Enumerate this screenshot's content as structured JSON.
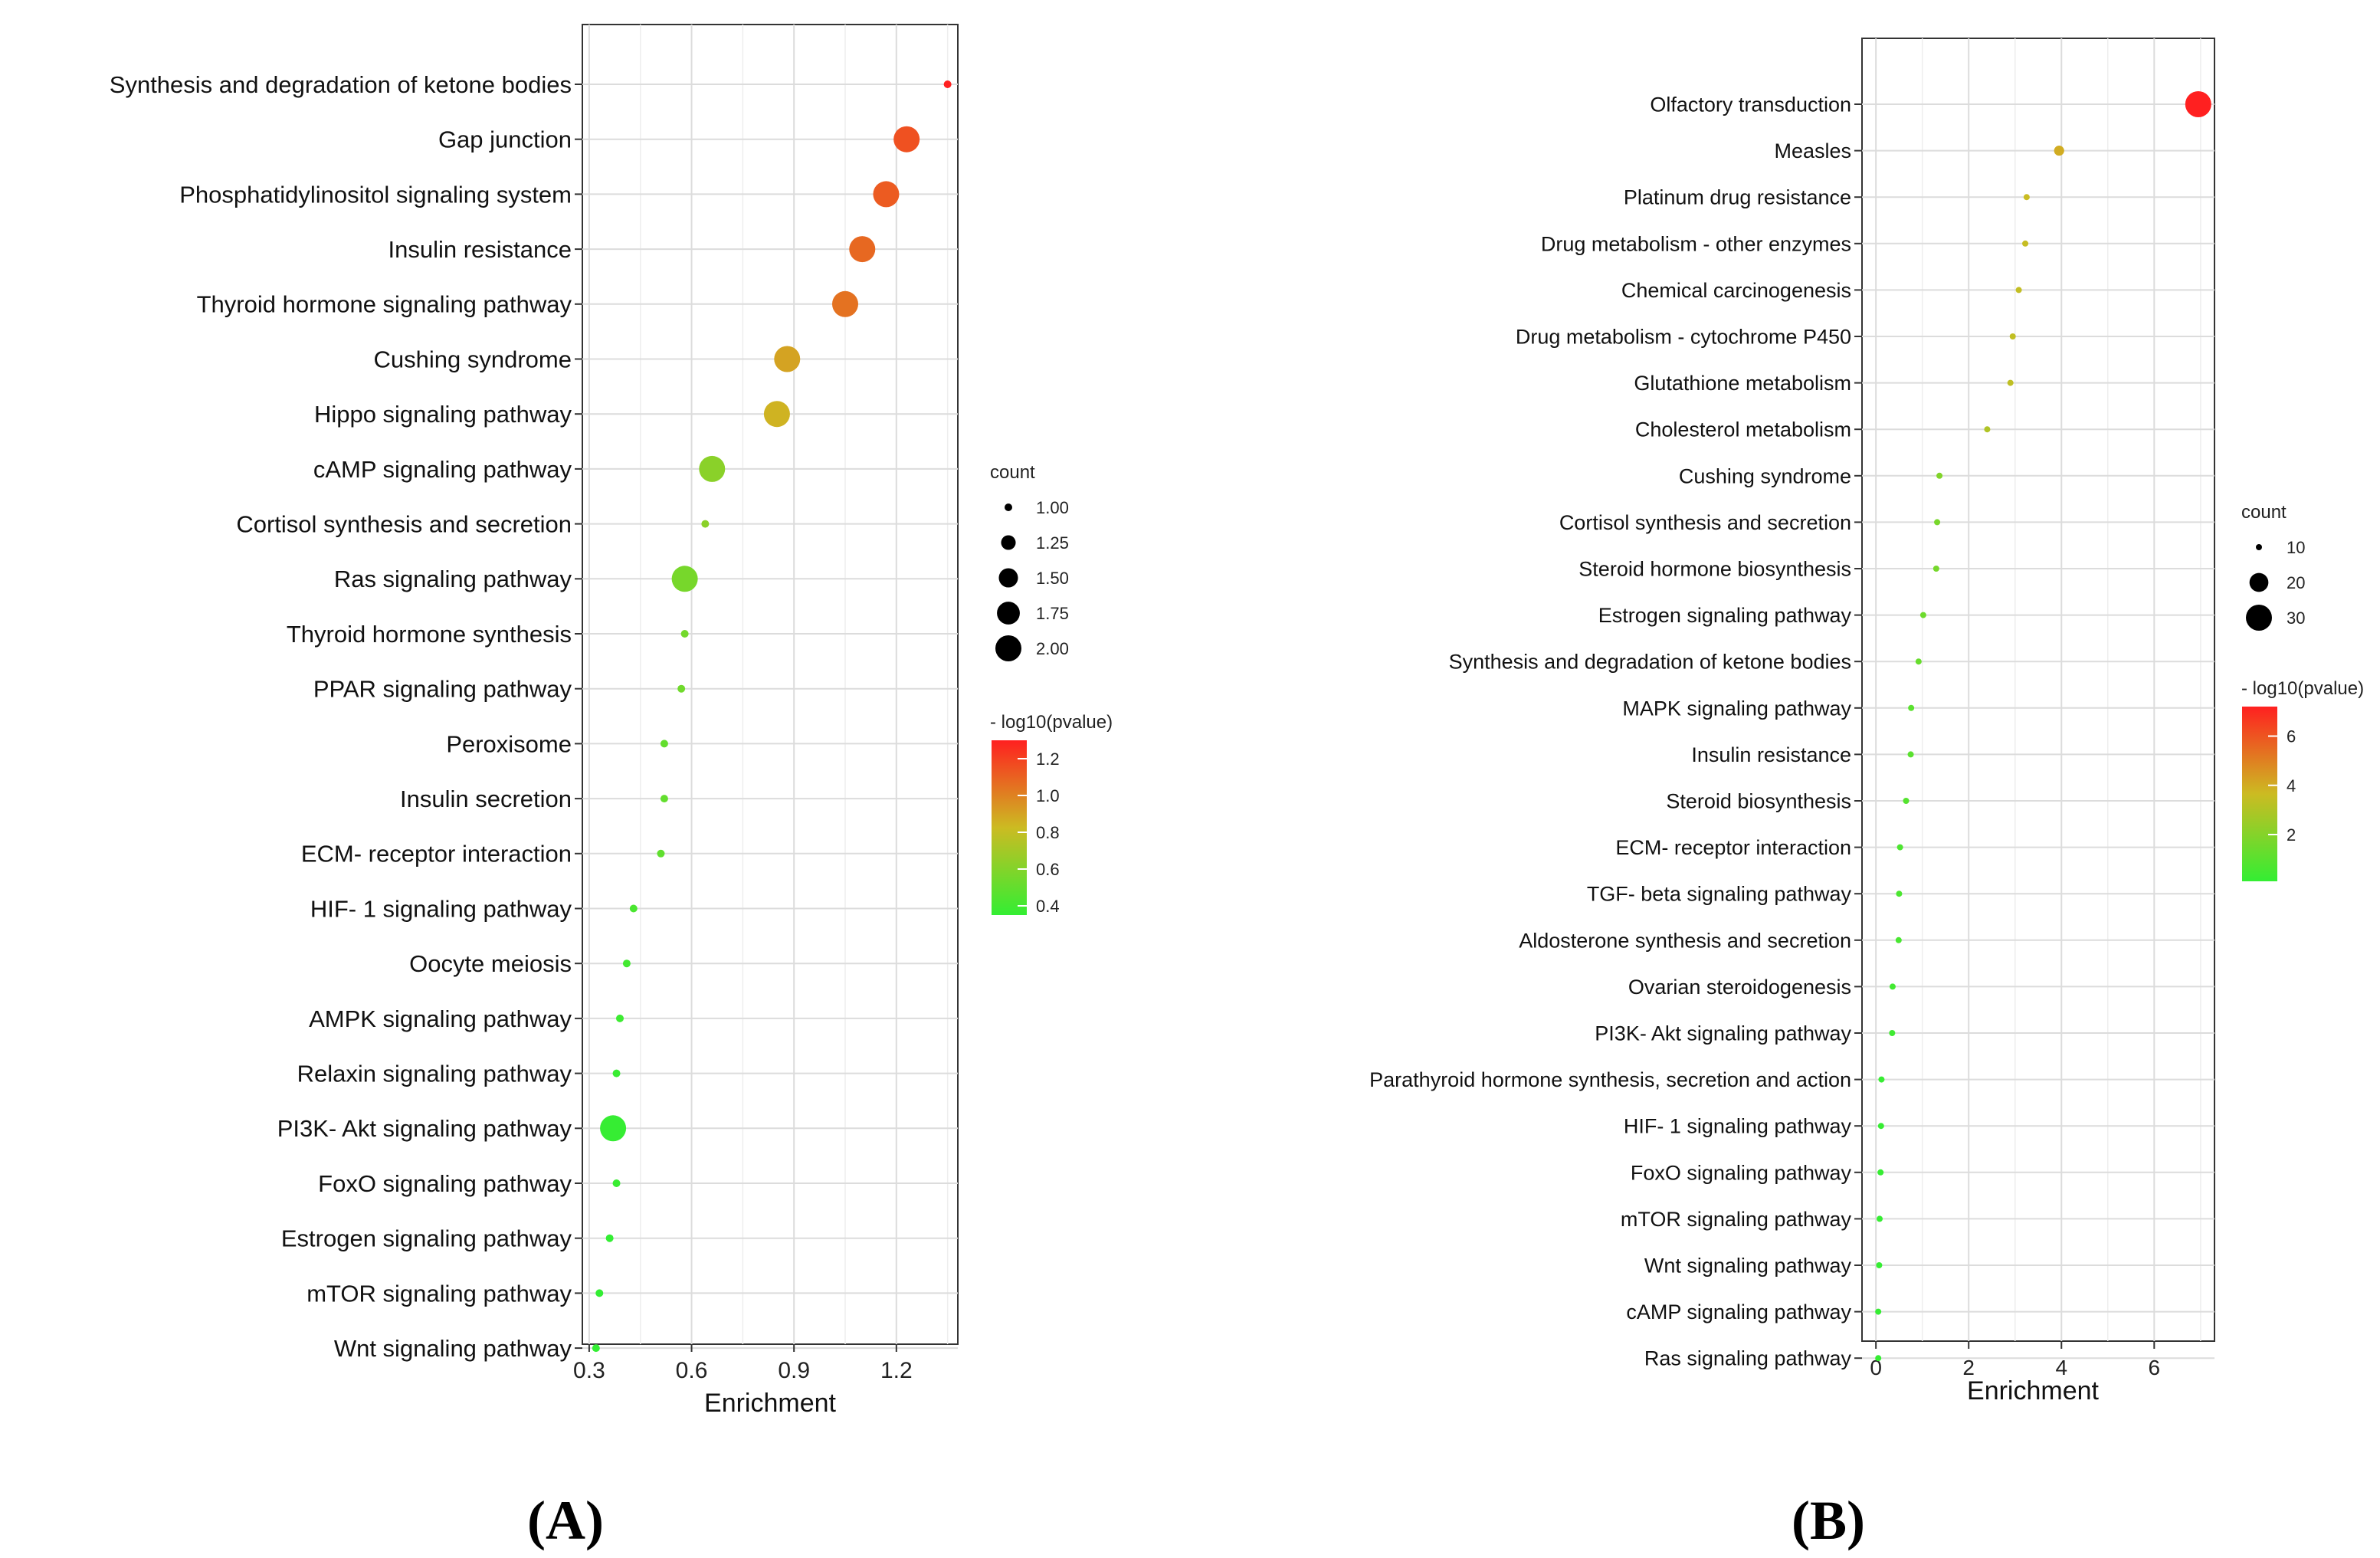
{
  "panels": [
    "(A)",
    "(B)"
  ],
  "chart_data": [
    {
      "type": "scatter",
      "title": "",
      "xlabel": "Enrichment",
      "ylabel": "",
      "xlim": [
        0.28,
        1.38
      ],
      "xticks": [
        0.3,
        0.6,
        0.9,
        1.2
      ],
      "xtick_labels": [
        "0.3",
        "0.6",
        "0.9",
        "1.2"
      ],
      "grid": true,
      "size_legend": {
        "title": "count",
        "values": [
          1.0,
          1.25,
          1.5,
          1.75,
          2.0
        ],
        "labels": [
          "1.00",
          "1.25",
          "1.50",
          "1.75",
          "2.00"
        ]
      },
      "color_legend": {
        "title": "- log10(pvalue)",
        "range": [
          0.35,
          1.3
        ],
        "ticks": [
          1.2,
          1.0,
          0.8,
          0.6,
          0.4
        ],
        "labels": [
          "1.2",
          "1.0",
          "0.8",
          "0.6",
          "0.4"
        ],
        "low_color": "#33ee33",
        "mid_color": "#ccbb22",
        "high_color": "#ff2020"
      },
      "categories": [
        "Synthesis and degradation of ketone bodies",
        "Gap junction",
        "Phosphatidylinositol signaling system",
        "Insulin resistance",
        "Thyroid hormone signaling pathway",
        "Cushing syndrome",
        "Hippo signaling pathway",
        "cAMP signaling pathway",
        "Cortisol synthesis and secretion",
        "Ras signaling pathway",
        "Thyroid hormone synthesis",
        "PPAR signaling pathway",
        "Peroxisome",
        "Insulin secretion",
        "ECM- receptor interaction",
        "HIF- 1 signaling pathway",
        "Oocyte meiosis",
        "AMPK signaling pathway",
        "Relaxin signaling pathway",
        "PI3K- Akt signaling pathway",
        "FoxO signaling pathway",
        "Estrogen signaling pathway",
        "mTOR signaling pathway",
        "Wnt signaling pathway"
      ],
      "enrichment": [
        1.35,
        1.23,
        1.17,
        1.1,
        1.05,
        0.88,
        0.85,
        0.66,
        0.64,
        0.58,
        0.58,
        0.57,
        0.52,
        0.52,
        0.51,
        0.43,
        0.41,
        0.39,
        0.38,
        0.37,
        0.38,
        0.36,
        0.33,
        0.32
      ],
      "count": [
        1,
        2,
        2,
        2,
        2,
        2,
        2,
        2,
        1,
        2,
        1,
        1,
        1,
        1,
        1,
        1,
        1,
        1,
        1,
        2,
        1,
        1,
        1,
        1
      ],
      "neg_log10_pvalue": [
        1.3,
        1.15,
        1.12,
        1.08,
        1.05,
        0.9,
        0.85,
        0.62,
        0.62,
        0.56,
        0.55,
        0.54,
        0.5,
        0.5,
        0.49,
        0.42,
        0.4,
        0.38,
        0.37,
        0.36,
        0.37,
        0.35,
        0.34,
        0.33
      ]
    },
    {
      "type": "scatter",
      "title": "",
      "xlabel": "Enrichment",
      "ylabel": "",
      "xlim": [
        -0.3,
        7.3
      ],
      "xticks": [
        0,
        2,
        4,
        6
      ],
      "xtick_labels": [
        "0",
        "2",
        "4",
        "6"
      ],
      "grid": true,
      "size_legend": {
        "title": "count",
        "values": [
          10,
          20,
          30
        ],
        "labels": [
          "10",
          "20",
          "30"
        ]
      },
      "color_legend": {
        "title": "- log10(pvalue)",
        "range": [
          0.1,
          7.2
        ],
        "ticks": [
          6,
          4,
          2
        ],
        "labels": [
          "6",
          "4",
          "2"
        ],
        "low_color": "#33ee33",
        "mid_color": "#ccbb22",
        "high_color": "#ff2020"
      },
      "categories": [
        "Olfactory transduction",
        "Measles",
        "Platinum drug resistance",
        "Drug metabolism -  other enzymes",
        "Chemical carcinogenesis",
        "Drug metabolism -  cytochrome P450",
        "Glutathione metabolism",
        "Cholesterol metabolism",
        "Cushing syndrome",
        "Cortisol synthesis and secretion",
        "Steroid hormone biosynthesis",
        "Estrogen signaling pathway",
        "Synthesis and degradation of ketone bodies",
        "MAPK signaling pathway",
        "Insulin resistance",
        "Steroid biosynthesis",
        "ECM- receptor interaction",
        "TGF- beta signaling pathway",
        "Aldosterone synthesis and secretion",
        "Ovarian steroidogenesis",
        "PI3K- Akt signaling pathway",
        "Parathyroid hormone synthesis, secretion and action",
        "HIF- 1 signaling pathway",
        "FoxO signaling pathway",
        "mTOR signaling pathway",
        "Wnt signaling pathway",
        "cAMP signaling pathway",
        "Ras signaling pathway"
      ],
      "enrichment": [
        6.95,
        3.95,
        3.25,
        3.22,
        3.08,
        2.95,
        2.9,
        2.4,
        1.37,
        1.32,
        1.3,
        1.02,
        0.92,
        0.76,
        0.75,
        0.65,
        0.52,
        0.5,
        0.49,
        0.36,
        0.35,
        0.12,
        0.11,
        0.1,
        0.08,
        0.07,
        0.05,
        0.05
      ],
      "count": [
        30,
        12,
        10,
        9,
        9,
        9,
        9,
        8,
        10,
        8,
        8,
        9,
        3,
        10,
        8,
        3,
        7,
        7,
        6,
        4,
        10,
        4,
        4,
        4,
        4,
        4,
        4,
        4
      ],
      "neg_log10_pvalue": [
        7.2,
        4.0,
        3.6,
        3.5,
        3.45,
        3.4,
        3.35,
        3.0,
        1.9,
        1.7,
        1.65,
        1.45,
        1.3,
        1.0,
        1.0,
        0.9,
        0.7,
        0.65,
        0.6,
        0.45,
        0.4,
        0.2,
        0.2,
        0.18,
        0.17,
        0.16,
        0.15,
        0.15
      ]
    }
  ]
}
